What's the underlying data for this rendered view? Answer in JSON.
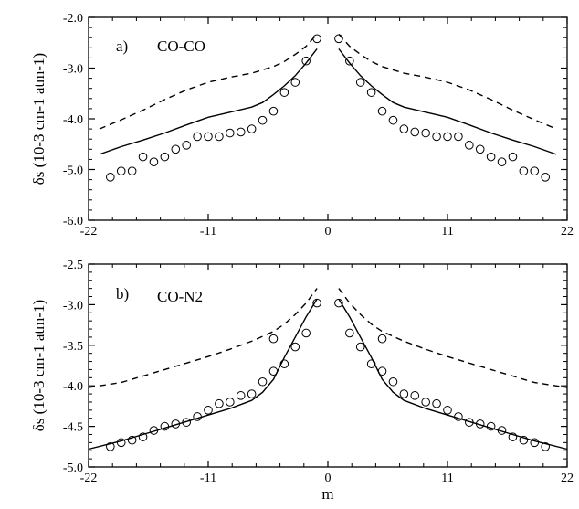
{
  "chart_data": [
    {
      "type": "line",
      "panel_label": "a)",
      "annotation": "CO-CO",
      "xlabel": "",
      "ylabel": "δs (10-3 cm-1 atm-1)",
      "xlim": [
        -22,
        22
      ],
      "ylim": [
        -6.0,
        -2.0
      ],
      "xticks": [
        -22,
        -11,
        0,
        11,
        22
      ],
      "xtick_labels": [
        "-22",
        "-11",
        "0",
        "11",
        "22"
      ],
      "yticks": [
        -6.0,
        -5.0,
        -4.0,
        -3.0,
        -2.0
      ],
      "ytick_labels": [
        "-6.0",
        "-5.0",
        "-4.0",
        "-3.0",
        "-2.0"
      ],
      "grid": false,
      "series": [
        {
          "style": "solid",
          "x": [
            -21,
            -19,
            -17,
            -15,
            -13,
            -11,
            -9,
            -7,
            -6,
            -5,
            -4,
            -3,
            -2,
            -1,
            1,
            2,
            3,
            4,
            5,
            6,
            7,
            9,
            11,
            13,
            15,
            17,
            19,
            21
          ],
          "y": [
            -4.7,
            -4.55,
            -4.42,
            -4.28,
            -4.12,
            -3.97,
            -3.87,
            -3.77,
            -3.68,
            -3.52,
            -3.35,
            -3.15,
            -2.9,
            -2.62,
            -2.62,
            -2.9,
            -3.15,
            -3.35,
            -3.52,
            -3.68,
            -3.77,
            -3.87,
            -3.97,
            -4.12,
            -4.28,
            -4.42,
            -4.55,
            -4.7
          ]
        },
        {
          "style": "dashed",
          "x": [
            -21,
            -19,
            -17,
            -15,
            -13,
            -11,
            -9,
            -7,
            -5,
            -4,
            -3,
            -2,
            -1,
            1,
            2,
            3,
            4,
            5,
            7,
            9,
            11,
            13,
            15,
            17,
            19,
            21
          ],
          "y": [
            -4.2,
            -4.02,
            -3.83,
            -3.62,
            -3.43,
            -3.28,
            -3.18,
            -3.1,
            -2.97,
            -2.87,
            -2.73,
            -2.57,
            -2.33,
            -2.33,
            -2.57,
            -2.73,
            -2.87,
            -2.97,
            -3.1,
            -3.18,
            -3.28,
            -3.43,
            -3.62,
            -3.83,
            -4.02,
            -4.2
          ]
        },
        {
          "style": "markers",
          "x": [
            -20,
            -19,
            -18,
            -17,
            -16,
            -15,
            -14,
            -13,
            -12,
            -11,
            -10,
            -9,
            -8,
            -7,
            -6,
            -5,
            -4,
            -3,
            -2,
            -1,
            1,
            2,
            3,
            4,
            5,
            6,
            7,
            8,
            9,
            10,
            11,
            12,
            13,
            14,
            15,
            16,
            17,
            18,
            19,
            20
          ],
          "y": [
            -5.15,
            -5.03,
            -5.03,
            -4.75,
            -4.85,
            -4.75,
            -4.6,
            -4.52,
            -4.35,
            -4.35,
            -4.35,
            -4.28,
            -4.26,
            -4.2,
            -4.03,
            -3.85,
            -3.48,
            -3.28,
            -2.86,
            -2.42,
            -2.42,
            -2.86,
            -3.28,
            -3.48,
            -3.85,
            -4.03,
            -4.2,
            -4.26,
            -4.28,
            -4.35,
            -4.35,
            -4.35,
            -4.52,
            -4.6,
            -4.75,
            -4.85,
            -4.75,
            -5.03,
            -5.03,
            -5.15
          ]
        }
      ]
    },
    {
      "type": "line",
      "panel_label": "b)",
      "annotation": "CO-N2",
      "xlabel": "m",
      "ylabel": "δs (10-3 cm-1 atm-1)",
      "xlim": [
        -22,
        22
      ],
      "ylim": [
        -5.0,
        -2.5
      ],
      "xticks": [
        -22,
        -11,
        0,
        11,
        22
      ],
      "xtick_labels": [
        "-22",
        "-11",
        "0",
        "11",
        "22"
      ],
      "yticks": [
        -5.0,
        -4.5,
        -4.0,
        -3.5,
        -3.0,
        -2.5
      ],
      "ytick_labels": [
        "-5.0",
        "-4.5",
        "-4.0",
        "-3.5",
        "-3.0",
        "-2.5"
      ],
      "grid": false,
      "series": [
        {
          "style": "solid",
          "x": [
            -22,
            -19,
            -17,
            -15,
            -13,
            -11,
            -9,
            -7,
            -6,
            -5,
            -4,
            -3,
            -2,
            -1,
            1,
            2,
            3,
            4,
            5,
            6,
            7,
            9,
            11,
            13,
            15,
            17,
            19,
            22
          ],
          "y": [
            -4.78,
            -4.68,
            -4.6,
            -4.52,
            -4.44,
            -4.36,
            -4.28,
            -4.18,
            -4.08,
            -3.92,
            -3.65,
            -3.4,
            -3.15,
            -2.93,
            -2.93,
            -3.15,
            -3.4,
            -3.65,
            -3.92,
            -4.08,
            -4.18,
            -4.28,
            -4.36,
            -4.44,
            -4.52,
            -4.6,
            -4.68,
            -4.78
          ]
        },
        {
          "style": "dashed",
          "x": [
            -22,
            -19,
            -17,
            -15,
            -13,
            -11,
            -9,
            -7,
            -5,
            -4,
            -3,
            -2,
            -1,
            1,
            2,
            3,
            4,
            5,
            7,
            9,
            11,
            13,
            15,
            17,
            19,
            22
          ],
          "y": [
            -4.02,
            -3.96,
            -3.88,
            -3.8,
            -3.72,
            -3.64,
            -3.55,
            -3.45,
            -3.33,
            -3.24,
            -3.12,
            -2.98,
            -2.8,
            -2.8,
            -2.98,
            -3.12,
            -3.24,
            -3.33,
            -3.45,
            -3.55,
            -3.64,
            -3.72,
            -3.8,
            -3.88,
            -3.96,
            -4.02
          ]
        },
        {
          "style": "markers",
          "x": [
            -20,
            -19,
            -18,
            -17,
            -16,
            -15,
            -14,
            -13,
            -12,
            -11,
            -10,
            -9,
            -8,
            -7,
            -6,
            -5,
            -5,
            -4,
            -3,
            -2,
            -1,
            1,
            2,
            3,
            4,
            5,
            5,
            6,
            7,
            8,
            9,
            10,
            11,
            12,
            13,
            14,
            15,
            16,
            17,
            18,
            19,
            20
          ],
          "y": [
            -4.75,
            -4.7,
            -4.67,
            -4.63,
            -4.55,
            -4.5,
            -4.47,
            -4.45,
            -4.38,
            -4.3,
            -4.22,
            -4.2,
            -4.12,
            -4.1,
            -3.95,
            -3.82,
            -3.42,
            -3.73,
            -3.52,
            -3.35,
            -2.98,
            -2.98,
            -3.35,
            -3.52,
            -3.73,
            -3.42,
            -3.82,
            -3.95,
            -4.1,
            -4.12,
            -4.2,
            -4.22,
            -4.3,
            -4.38,
            -4.45,
            -4.47,
            -4.5,
            -4.55,
            -4.63,
            -4.67,
            -4.7,
            -4.75
          ]
        }
      ]
    }
  ]
}
